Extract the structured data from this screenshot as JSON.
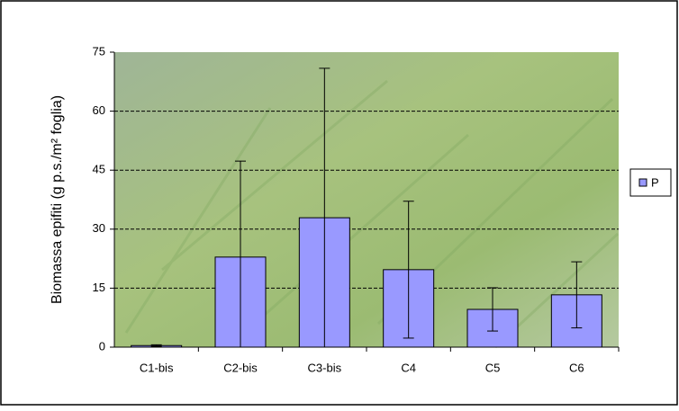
{
  "chart_data": {
    "type": "bar",
    "y_label": "Biomassa epifiti (g p.s./m² foglia)",
    "categories": [
      "C1-bis",
      "C2-bis",
      "C3-bis",
      "C4",
      "C5",
      "C6"
    ],
    "series": [
      {
        "name": "P",
        "color": "#9999ff",
        "values": [
          0.4,
          22.9,
          32.9,
          19.7,
          9.6,
          13.3
        ],
        "errors": [
          0.2,
          24.4,
          38,
          17.4,
          5.5,
          8.4
        ]
      }
    ],
    "ylim": [
      0,
      75
    ],
    "yticks": [
      0,
      15,
      30,
      45,
      60,
      75
    ],
    "grid": true
  }
}
